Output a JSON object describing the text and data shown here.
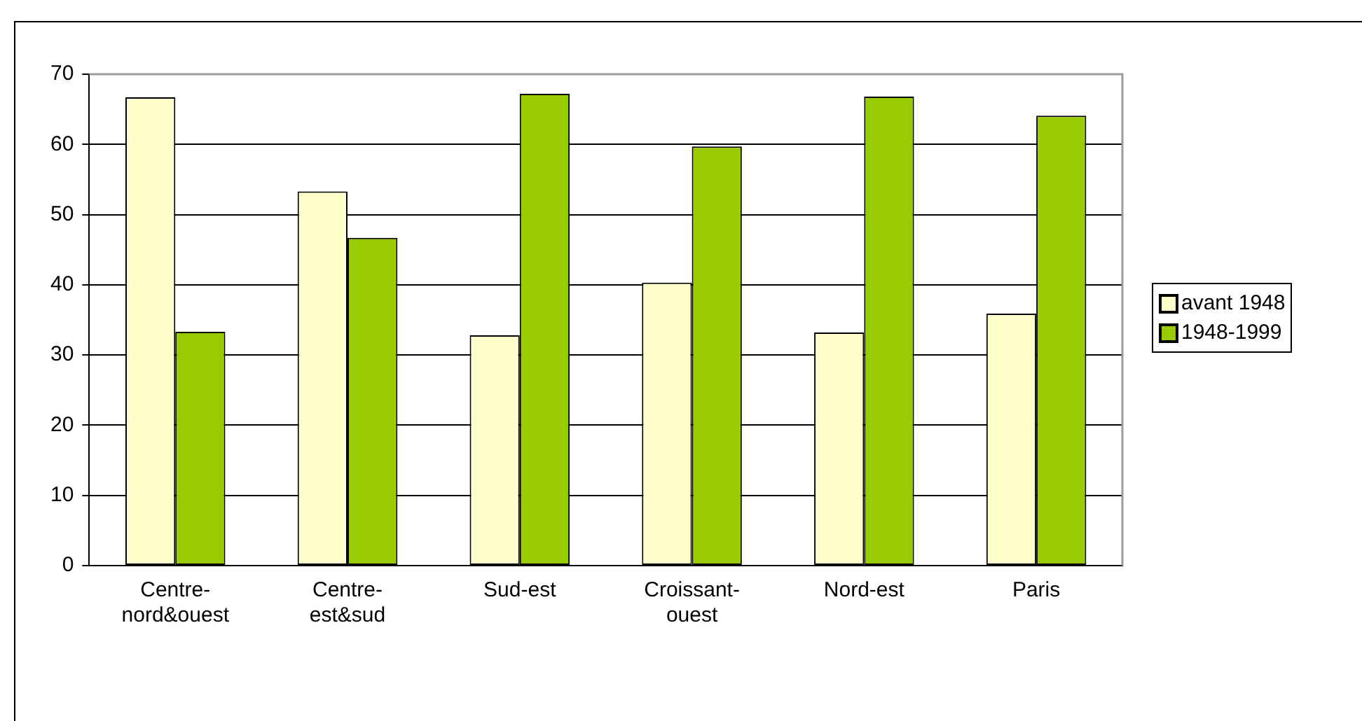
{
  "chart_data": {
    "type": "bar",
    "categories": [
      "Centre-nord&ouest",
      "Centre-est&sud",
      "Sud-est",
      "Croissant-ouest",
      "Nord-est",
      "Paris"
    ],
    "series": [
      {
        "name": "avant 1948",
        "color": "#ffffcc",
        "values": [
          66.7,
          53.3,
          32.8,
          40.3,
          33.2,
          35.9
        ]
      },
      {
        "name": "1948-1999",
        "color": "#99cc00",
        "values": [
          33.3,
          46.7,
          67.2,
          59.7,
          66.8,
          64.1
        ]
      }
    ],
    "ylim": [
      0,
      70
    ],
    "yticks": [
      0,
      10,
      20,
      30,
      40,
      50,
      60,
      70
    ],
    "grid": "y",
    "legend": "right"
  }
}
